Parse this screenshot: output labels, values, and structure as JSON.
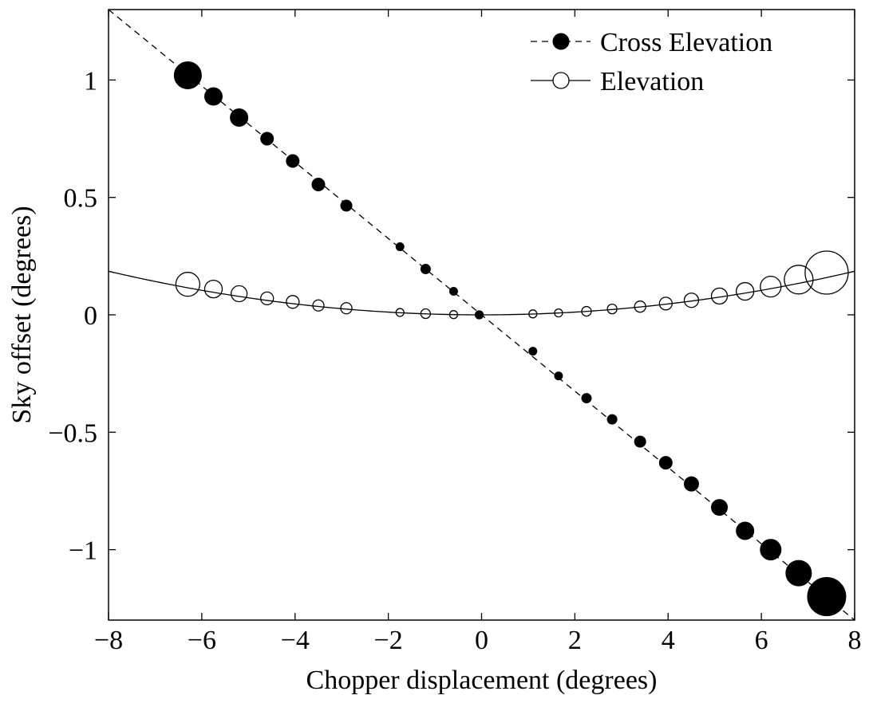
{
  "chart_data": {
    "type": "scatter",
    "xlabel": "Chopper displacement (degrees)",
    "ylabel": "Sky offset (degrees)",
    "xlim": [
      -8,
      8
    ],
    "ylim": [
      -1.3,
      1.3
    ],
    "xticks": [
      -8,
      -6,
      -4,
      -2,
      0,
      2,
      4,
      6,
      8
    ],
    "yticks": [
      -1,
      -0.5,
      0,
      0.5,
      1
    ],
    "xtick_labels": [
      "−8",
      "−6",
      "−4",
      "−2",
      "0",
      "2",
      "4",
      "6",
      "8"
    ],
    "ytick_labels": [
      "−1",
      "−0.5",
      "0",
      "0.5",
      "1"
    ],
    "grid": false,
    "legend_position": "top-right",
    "series": [
      {
        "name": "Cross Elevation",
        "marker": "filled-circle",
        "line": "dashed",
        "fit_line": {
          "x": [
            -8,
            8
          ],
          "y": [
            1.3,
            -1.3
          ]
        },
        "x": [
          -6.3,
          -5.75,
          -5.2,
          -4.6,
          -4.05,
          -3.5,
          -2.9,
          -1.75,
          -1.2,
          -0.6,
          -0.05,
          1.1,
          1.65,
          2.25,
          2.8,
          3.4,
          3.95,
          4.5,
          5.1,
          5.65,
          6.2,
          6.8,
          7.4
        ],
        "y": [
          1.02,
          0.93,
          0.84,
          0.75,
          0.655,
          0.555,
          0.465,
          0.29,
          0.195,
          0.1,
          0.0,
          -0.155,
          -0.26,
          -0.355,
          -0.445,
          -0.54,
          -0.63,
          -0.72,
          -0.82,
          -0.92,
          -1.0,
          -1.1,
          -1.2
        ],
        "size": [
          17,
          11,
          11,
          8,
          8,
          8,
          7,
          5,
          6,
          5,
          5,
          5,
          5,
          6,
          6,
          7,
          8,
          9,
          10,
          11,
          13,
          16,
          24
        ]
      },
      {
        "name": "Elevation",
        "marker": "open-circle",
        "line": "solid",
        "fit_curve": {
          "type": "quadratic",
          "a": 0.0029,
          "x_range": [
            -8,
            8
          ]
        },
        "x": [
          -6.3,
          -5.75,
          -5.2,
          -4.6,
          -4.05,
          -3.5,
          -2.9,
          -1.75,
          -1.2,
          -0.6,
          -0.05,
          1.1,
          1.65,
          2.25,
          2.8,
          3.4,
          3.95,
          4.5,
          5.1,
          5.65,
          6.2,
          6.8,
          7.4
        ],
        "y": [
          0.13,
          0.11,
          0.09,
          0.07,
          0.055,
          0.04,
          0.028,
          0.01,
          0.005,
          0.001,
          0.0,
          0.004,
          0.008,
          0.015,
          0.025,
          0.035,
          0.048,
          0.062,
          0.08,
          0.1,
          0.12,
          0.15,
          0.18
        ],
        "size": [
          15,
          11,
          10,
          8,
          8,
          7,
          7,
          5,
          6,
          5,
          5,
          5,
          5,
          6,
          6,
          7,
          8,
          9,
          10,
          11,
          13,
          18,
          27
        ]
      }
    ]
  }
}
